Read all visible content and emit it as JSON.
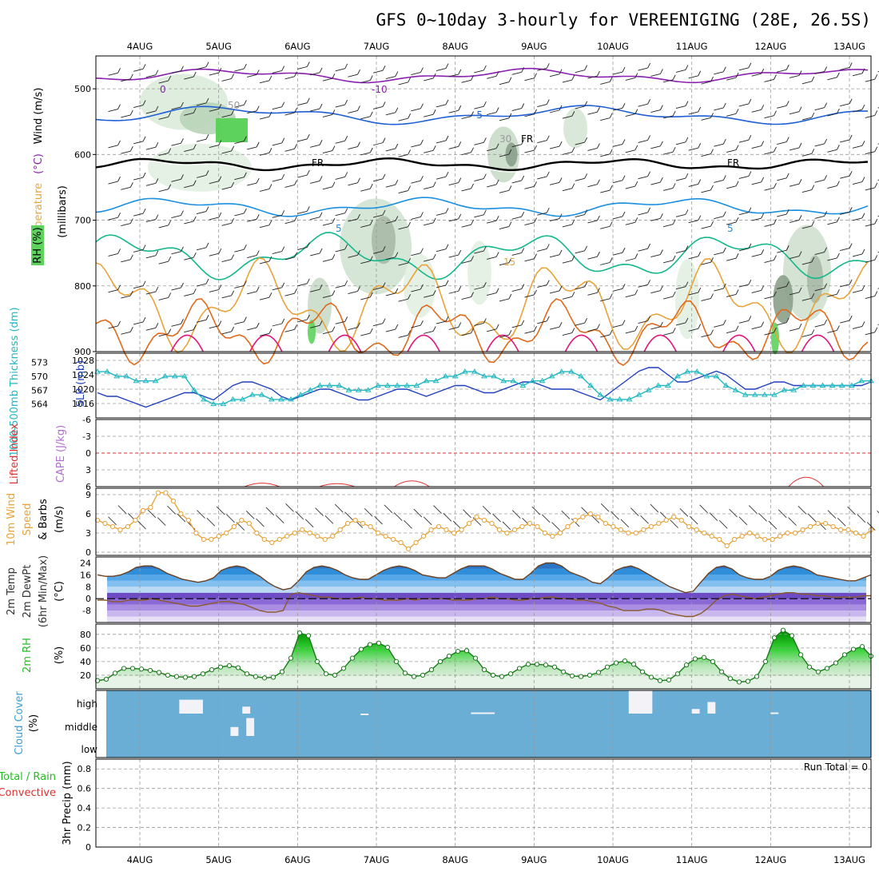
{
  "title": "GFS 0~10day 3-hourly for VEREENIGING (28E, 26.5S)",
  "dates": [
    "4AUG",
    "5AUG",
    "6AUG",
    "7AUG",
    "8AUG",
    "9AUG",
    "10AUG",
    "11AUG",
    "12AUG",
    "13AUG"
  ],
  "colors": {
    "temp_cold": "#8a1fb0",
    "temp_blue": "#1f5fd6",
    "temp_cyan": "#1a8fe0",
    "temp_teal": "#12b88a",
    "temp_orange": "#e8a33a",
    "temp_dark_orange": "#e06a1c",
    "temp_magenta": "#e0147a",
    "rh_green": "#5dd35d",
    "slp": "#1f3fbf",
    "thickness": "#20b8c0",
    "wind": "#e8a33a",
    "cape_red": "#e03030",
    "cloud_bg": "#6aaed6",
    "rh_area": "#22c022"
  },
  "chart_data": [
    {
      "type": "heatmap",
      "panel": "cross-section",
      "ylabel_parts": [
        "RH (%)",
        "Temperature",
        "(°C)",
        "Wind (m/s)",
        "(millibars)"
      ],
      "y_ticks": [
        "500",
        "600",
        "700",
        "800",
        "900"
      ],
      "ylim": [
        450,
        900
      ],
      "isotherm_labels": [
        "0",
        "-10",
        "-5",
        "FR",
        "FR",
        "FR",
        "5",
        "5",
        "15"
      ],
      "rh_labels": [
        "50",
        "30"
      ],
      "x_ticks": [
        "4AUG",
        "5AUG",
        "6AUG",
        "7AUG",
        "8AUG",
        "9AUG",
        "10AUG",
        "11AUG",
        "12AUG",
        "13AUG"
      ]
    },
    {
      "type": "line",
      "panel": "slp-thickness",
      "ylabel_left": "1000-500mb Thickness (dm)",
      "ylabel_right": "SLP (mb)",
      "left_ticks": [
        "573",
        "570",
        "567",
        "564"
      ],
      "right_ticks": [
        "1028",
        "1024",
        "1020",
        "1016"
      ],
      "series": [
        {
          "name": "SLP (mb)",
          "units": "mb",
          "values": [
            1019,
            1018,
            1018,
            1017,
            1016,
            1015,
            1016,
            1017,
            1018,
            1019,
            1019,
            1018,
            1017,
            1019,
            1021,
            1022,
            1022,
            1021,
            1020,
            1018,
            1017,
            1018,
            1019,
            1020,
            1020,
            1019,
            1018,
            1017,
            1017,
            1018,
            1019,
            1020,
            1020,
            1019,
            1018,
            1019,
            1020,
            1021,
            1021,
            1020,
            1019,
            1019,
            1020,
            1021,
            1022,
            1022,
            1021,
            1020,
            1020,
            1020,
            1019,
            1018,
            1017,
            1019,
            1021,
            1023,
            1025,
            1026,
            1026,
            1024,
            1022,
            1022,
            1023,
            1024,
            1025,
            1024,
            1022,
            1020,
            1020,
            1021,
            1022,
            1022,
            1021,
            1021,
            1021,
            1021,
            1021,
            1021,
            1021,
            1021,
            1022
          ]
        },
        {
          "name": "1000-500mb Thickness (dm)",
          "units": "dm",
          "values": [
            571,
            571,
            570,
            570,
            569,
            569,
            569,
            570,
            570,
            570,
            567,
            565,
            564,
            564,
            565,
            565,
            566,
            566,
            565,
            565,
            565,
            566,
            567,
            568,
            568,
            568,
            567,
            567,
            567,
            568,
            568,
            568,
            568,
            568,
            569,
            569,
            570,
            570,
            571,
            571,
            570,
            570,
            569,
            569,
            568,
            569,
            569,
            570,
            571,
            571,
            570,
            568,
            566,
            565,
            565,
            565,
            566,
            567,
            568,
            568,
            570,
            571,
            571,
            570,
            570,
            568,
            567,
            566,
            566,
            566,
            566,
            567,
            567,
            568,
            568,
            568,
            568,
            568,
            568,
            569,
            569
          ]
        }
      ]
    },
    {
      "type": "line",
      "panel": "cape-lifted-index",
      "ylabel_left": "Lifted Index",
      "ylabel_right": "CAPE (J/kg)",
      "y_ticks": [
        "-6",
        "-3",
        "0",
        "3",
        "6"
      ],
      "ylim": [
        -6,
        6
      ],
      "series": [
        {
          "name": "Lifted Index",
          "values": [
            9,
            9,
            9,
            9,
            9,
            9,
            9,
            9,
            9,
            9,
            9,
            9,
            9,
            9,
            9,
            9,
            5.8,
            9,
            9,
            9,
            9,
            9,
            9,
            9,
            9,
            9,
            9,
            9,
            9,
            9,
            9,
            9,
            9,
            9,
            9,
            9,
            9,
            5.7,
            9,
            9,
            9,
            9,
            9,
            9,
            9,
            9,
            9,
            9,
            9,
            9,
            9,
            9,
            9,
            9,
            9,
            9,
            9,
            9,
            9,
            9,
            9,
            9,
            9,
            9,
            9,
            9,
            9,
            9,
            9,
            9,
            9,
            9,
            9,
            9,
            9,
            9,
            9,
            9,
            9,
            9,
            9,
            9,
            9,
            9,
            9,
            9,
            9,
            9,
            9,
            9,
            9,
            9,
            9,
            9,
            9,
            9,
            9,
            9,
            9,
            9,
            9,
            9,
            9,
            9,
            9,
            9,
            9,
            9,
            9,
            9,
            9,
            9,
            9,
            9,
            9,
            9,
            9,
            9,
            9,
            9,
            9,
            9,
            9,
            9,
            9,
            9,
            9,
            9,
            9,
            9,
            9,
            9,
            9,
            9,
            9,
            9,
            9,
            9,
            9,
            9,
            9
          ]
        }
      ],
      "bumps": [
        {
          "day": "5AUG",
          "center": 5.55,
          "min_li": 5.6
        },
        {
          "day": "6AUG",
          "center": 6.5,
          "min_li": 5.8
        },
        {
          "day": "7AUG",
          "center": 7.45,
          "min_li": 4.8
        },
        {
          "day": "12AUG",
          "center": 12.45,
          "min_li": 3.5
        }
      ]
    },
    {
      "type": "line",
      "panel": "10m-wind",
      "ylabel": "10m Wind Speed & Barbs (m/s)",
      "y_ticks": [
        "9",
        "6",
        "3",
        "0"
      ],
      "ylim": [
        0,
        10
      ],
      "series": [
        {
          "name": "10m Wind Speed",
          "values": [
            5,
            4.5,
            4,
            3.5,
            4,
            5,
            6.5,
            7,
            9.3,
            9.3,
            8,
            6,
            5,
            3,
            2,
            2,
            2.5,
            3,
            4,
            5,
            4.5,
            3,
            2,
            1.5,
            2,
            2.5,
            3,
            3.5,
            3,
            2.5,
            2,
            2.5,
            3.5,
            4.5,
            5,
            4.5,
            4,
            3,
            2.5,
            2,
            1.5,
            0.5,
            1.5,
            2.5,
            3.5,
            4,
            3.5,
            3,
            3.5,
            4.5,
            5.5,
            5,
            4.5,
            3.5,
            3,
            3.5,
            4,
            4.5,
            4,
            3,
            2.5,
            3,
            4,
            5,
            5.5,
            6,
            5.5,
            4.5,
            4,
            3.5,
            3,
            3,
            3.5,
            4,
            4.5,
            5,
            5.5,
            5,
            4,
            3.5,
            3,
            2.5,
            2,
            1,
            2,
            2.5,
            3,
            2.5,
            2,
            2,
            2.5,
            3,
            3,
            3.5,
            4,
            4.5,
            4.5,
            4,
            3.5,
            3.5,
            3,
            2.5,
            3.5
          ]
        }
      ]
    },
    {
      "type": "area",
      "panel": "2m-temp-dewpt",
      "ylabel": "2m Temp 2m DewPt (6hr Min/Max) (°C)",
      "y_ticks": [
        "24",
        "16",
        "8",
        "0",
        "-8"
      ],
      "ylim": [
        -16,
        28
      ],
      "series": [
        {
          "name": "2m Temp",
          "values": [
            16,
            15,
            15,
            16,
            18,
            21,
            22,
            22,
            20,
            17,
            15,
            13,
            12,
            11,
            12,
            14,
            19,
            21,
            22,
            21,
            18,
            15,
            11,
            8,
            6,
            7,
            12,
            18,
            21,
            22,
            21,
            19,
            16,
            14,
            13,
            13,
            16,
            19,
            21,
            22,
            21,
            19,
            16,
            15,
            14,
            14,
            17,
            20,
            22,
            22,
            22,
            20,
            17,
            15,
            13,
            13,
            17,
            22,
            24,
            24,
            22,
            18,
            16,
            14,
            11,
            10,
            14,
            19,
            21,
            22,
            20,
            17,
            14,
            11,
            8,
            6,
            4,
            5,
            11,
            17,
            21,
            22,
            20,
            16,
            14,
            13,
            13,
            15,
            19,
            21,
            22,
            21,
            19,
            16,
            15,
            14,
            13,
            12,
            12,
            14,
            16
          ]
        },
        {
          "name": "2m DewPt",
          "values": [
            -1,
            -1,
            -2,
            -2,
            -1,
            -1,
            -1,
            0,
            -1,
            -2,
            -3,
            -4,
            -5,
            -5,
            -4,
            -3,
            -2,
            -2,
            -3,
            -4,
            -6,
            -8,
            -9,
            -9,
            -8,
            3,
            4,
            3,
            2,
            1,
            1,
            0,
            0,
            0,
            1,
            0,
            0,
            -1,
            -1,
            -1,
            0,
            -1,
            0,
            0,
            0,
            0,
            -1,
            -1,
            -1,
            0,
            0,
            1,
            0,
            0,
            -1,
            -1,
            0,
            0,
            1,
            1,
            0,
            0,
            -1,
            -1,
            -2,
            -3,
            -5,
            -6,
            -8,
            -8,
            -8,
            -7,
            -7,
            -8,
            -10,
            -11,
            -12,
            -12,
            -10,
            -6,
            -1,
            2,
            3,
            2,
            1,
            0,
            1,
            2,
            3,
            4,
            4,
            3,
            3,
            2,
            2,
            1,
            1,
            1,
            1,
            2,
            2
          ]
        }
      ],
      "minmax_labels": [
        "Max",
        "Min"
      ]
    },
    {
      "type": "area",
      "panel": "2m-rh",
      "ylabel": "2m RH (%)",
      "y_ticks": [
        "80",
        "60",
        "40",
        "20"
      ],
      "ylim": [
        0,
        95
      ],
      "series": [
        {
          "name": "2m RH",
          "values": [
            12,
            14,
            23,
            30,
            30,
            29,
            27,
            24,
            20,
            18,
            17,
            18,
            22,
            28,
            32,
            34,
            31,
            22,
            18,
            16,
            17,
            25,
            45,
            82,
            78,
            40,
            22,
            20,
            30,
            45,
            58,
            65,
            67,
            61,
            40,
            23,
            18,
            20,
            28,
            40,
            48,
            55,
            56,
            45,
            28,
            20,
            18,
            22,
            30,
            36,
            36,
            35,
            32,
            25,
            19,
            18,
            20,
            24,
            32,
            38,
            41,
            36,
            25,
            17,
            12,
            13,
            22,
            35,
            44,
            46,
            40,
            25,
            15,
            10,
            11,
            18,
            40,
            75,
            86,
            78,
            50,
            32,
            25,
            30,
            38,
            50,
            58,
            62,
            48
          ]
        }
      ]
    },
    {
      "type": "bar",
      "panel": "cloud-cover",
      "ylabel": "Cloud Cover (%)",
      "y_ticks": [
        "high",
        "middle",
        "low"
      ],
      "layers": {
        "high": [
          {
            "day": 4.65,
            "w": 0.3,
            "v": 60
          },
          {
            "day": 5.35,
            "w": 0.1,
            "v": 30
          },
          {
            "day": 6.85,
            "w": 0.1,
            "v": 0
          },
          {
            "day": 8.35,
            "w": 0.3,
            "v": 5
          },
          {
            "day": 10.35,
            "w": 0.3,
            "v": 100
          },
          {
            "day": 11.05,
            "w": 0.1,
            "v": 20
          },
          {
            "day": 11.25,
            "w": 0.1,
            "v": 50
          },
          {
            "day": 12.05,
            "w": 0.1,
            "v": 5
          }
        ],
        "middle": [
          {
            "day": 5.2,
            "w": 0.1,
            "v": 40
          },
          {
            "day": 5.4,
            "w": 0.1,
            "v": 80
          }
        ],
        "low": []
      }
    },
    {
      "type": "bar",
      "panel": "precip",
      "ylabel": "3hr Precip (mm)",
      "ylabel_legend": [
        "Total / Rain",
        "Convective"
      ],
      "y_ticks": [
        "0.8",
        "0.6",
        "0.4",
        "0.2",
        "0"
      ],
      "ylim": [
        0,
        0.9
      ],
      "run_total_label": "Run Total = 0",
      "values": []
    }
  ]
}
